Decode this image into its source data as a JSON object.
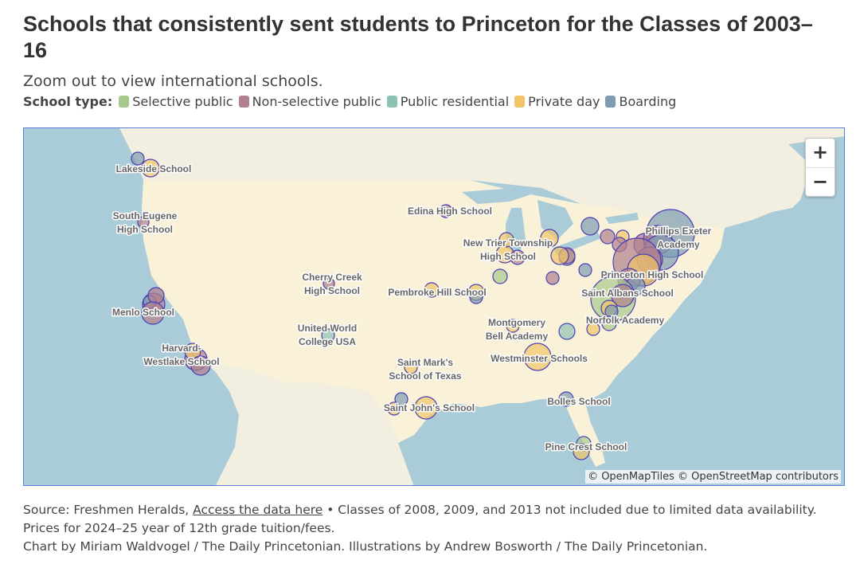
{
  "title": "Schools that consistently sent students to Princeton for the Classes of 2003–16",
  "subtitle": "Zoom out to view international schools.",
  "legend": {
    "label": "School type:",
    "items": [
      {
        "name": "Selective public",
        "color": "#a7c98a"
      },
      {
        "name": "Non-selective public",
        "color": "#b0808e"
      },
      {
        "name": "Public residential",
        "color": "#8cc2b4"
      },
      {
        "name": "Private day",
        "color": "#f0c467"
      },
      {
        "name": "Boarding",
        "color": "#7e9cb2"
      }
    ]
  },
  "map": {
    "zoom_in": "+",
    "zoom_out": "−",
    "attribution": "© OpenMapTiles © OpenStreetMap contributors",
    "labels": [
      {
        "id": "lakeside",
        "lines": [
          "Lakeside School"
        ]
      },
      {
        "id": "south-eugene",
        "lines": [
          "South Eugene",
          "High School"
        ]
      },
      {
        "id": "edina",
        "lines": [
          "Edina High School"
        ]
      },
      {
        "id": "new-trier",
        "lines": [
          "New Trier Township",
          "High School"
        ]
      },
      {
        "id": "phillips-exeter",
        "lines": [
          "Phillips Exeter",
          "Academy"
        ]
      },
      {
        "id": "cherry-creek",
        "lines": [
          "Cherry Creek",
          "High School"
        ]
      },
      {
        "id": "pembroke-hill",
        "lines": [
          "Pembroke Hill School"
        ]
      },
      {
        "id": "princeton-high",
        "lines": [
          "Princeton High School"
        ]
      },
      {
        "id": "saint-albans",
        "lines": [
          "Saint Albans School"
        ]
      },
      {
        "id": "menlo",
        "lines": [
          "Menlo School"
        ]
      },
      {
        "id": "uwc",
        "lines": [
          "United World",
          "College USA"
        ]
      },
      {
        "id": "montgomery-bell",
        "lines": [
          "Montgomery",
          "Bell Academy"
        ]
      },
      {
        "id": "norfolk",
        "lines": [
          "Norfolk Academy"
        ]
      },
      {
        "id": "harvard-westlake",
        "lines": [
          "Harvard-",
          "Westlake School"
        ]
      },
      {
        "id": "westminster",
        "lines": [
          "Westminster Schools"
        ]
      },
      {
        "id": "saint-marks",
        "lines": [
          "Saint Mark's",
          "School of Texas"
        ]
      },
      {
        "id": "saint-johns",
        "lines": [
          "Saint John's School"
        ]
      },
      {
        "id": "bolles",
        "lines": [
          "Bolles School"
        ]
      },
      {
        "id": "pine-crest",
        "lines": [
          "Pine Crest School"
        ]
      }
    ]
  },
  "footer": {
    "source_prefix": "Source: Freshmen Heralds, ",
    "source_link": "Access the data here",
    "source_suffix": " • Classes of 2008, 2009, and 2013 not included due to limited data availability. Prices for 2024–25 year of 12th grade tuition/fees.",
    "credits": "Chart by Miriam Waldvogel / The Daily Princetonian. Illustrations by Andrew Bosworth / The Daily Princetonian."
  }
}
